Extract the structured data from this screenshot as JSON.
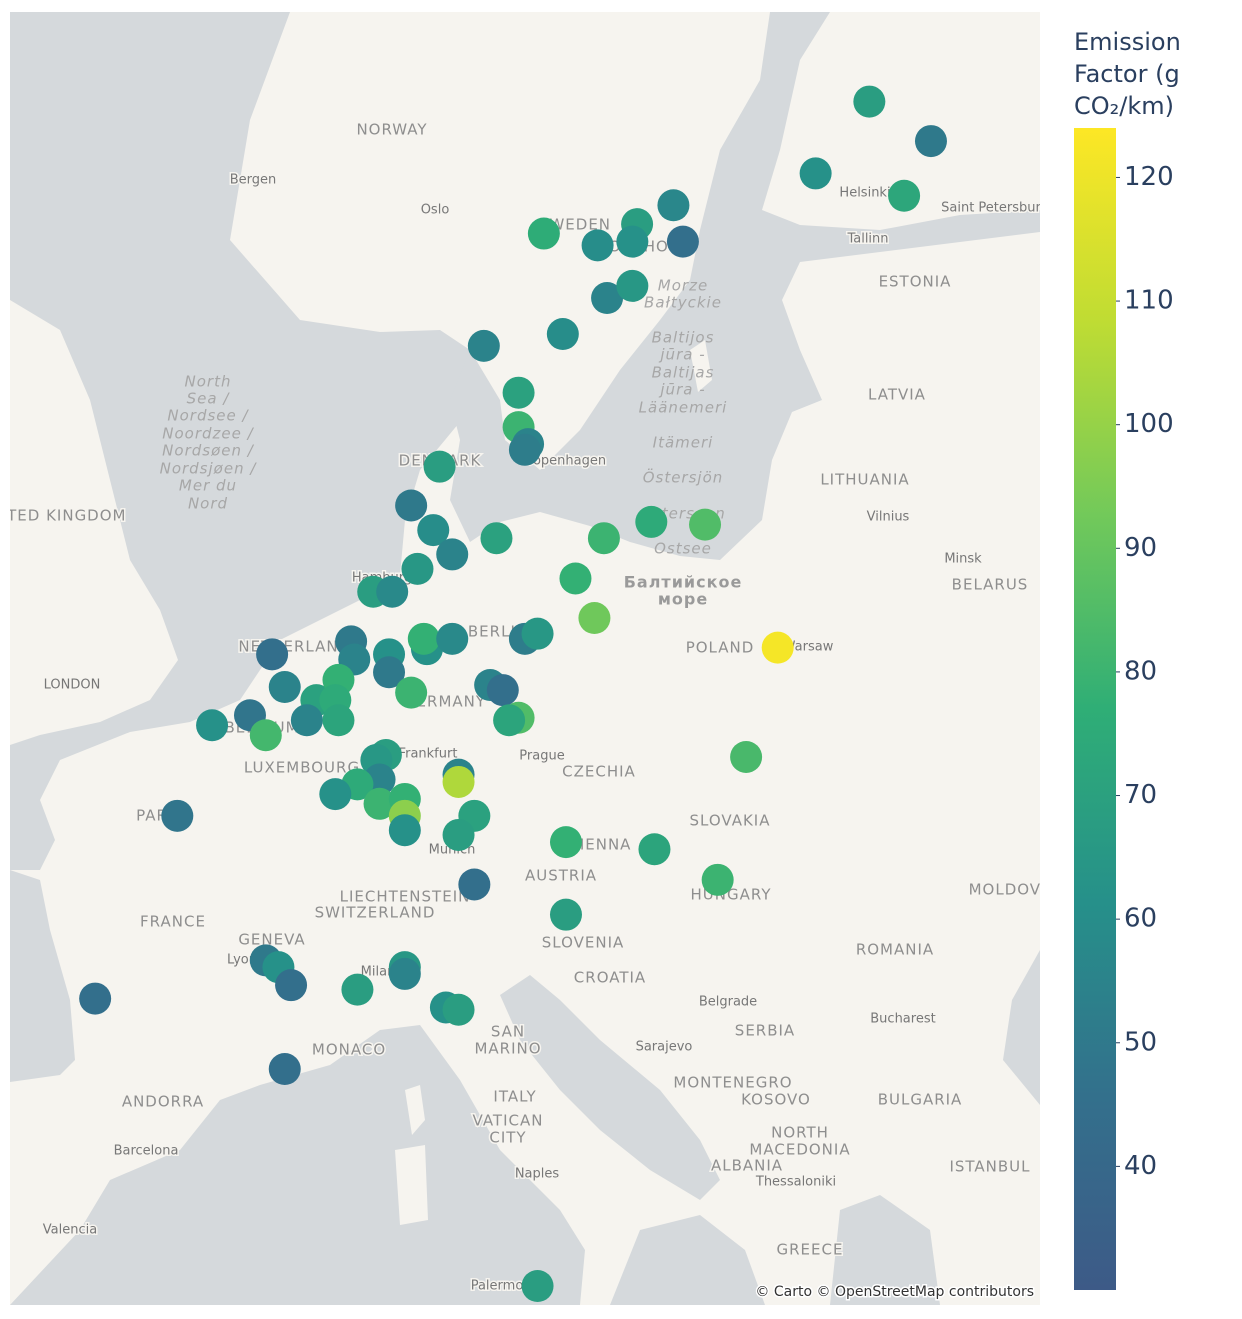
{
  "map": {
    "labels": [
      "NORWAY",
      "Bergen",
      "Oslo",
      "SWEDEN",
      "STOCKHOLM",
      "Helsinki",
      "Saint Petersburg",
      "Tallinn",
      "ESTONIA",
      "LATVIA",
      "LITHUANIA",
      "Vilnius",
      "Minsk",
      "BELARUS",
      "DENMARK",
      "Copenhagen",
      "UNITED KINGDOM",
      "LONDON",
      "Hamburg",
      "NETHERLANDS",
      "BERLIN",
      "GERMANY",
      "BELGIUM",
      "LUXEMBOURG",
      "Frankfurt",
      "Prague",
      "CZECHIA",
      "POLAND",
      "Warsaw",
      "PARIS",
      "SLOVAKIA",
      "Munich",
      "VIENNA",
      "AUSTRIA",
      "HUNGARY",
      "MOLDOVA",
      "LIECHTENSTEIN",
      "SWITZERLAND",
      "FRANCE",
      "GENEVA",
      "Lyon",
      "Milan",
      "SLOVENIA",
      "ROMANIA",
      "CROATIA",
      "Belgrade",
      "SERBIA",
      "Bucharest",
      "SAN",
      "MARINO",
      "Sarajevo",
      "MONACO",
      "MONTENEGRO",
      "KOSOVO",
      "BULGARIA",
      "ANDORRA",
      "ITALY",
      "VATICAN",
      "CITY",
      "NORTH",
      "MACEDONIA",
      "ALBANIA",
      "ISTANBUL",
      "Thessaloniki",
      "Barcelona",
      "Naples",
      "Valencia",
      "GREECE",
      "Palermo"
    ],
    "north_sea": [
      "North",
      "Sea /",
      "Nordsee /",
      "Noordzee /",
      "Nordsøen /",
      "Nordsjøen /",
      "Mer du",
      "Nord"
    ],
    "baltic_sea": [
      "Morze",
      "Bałtyckie",
      "Baltijos",
      "jūra -",
      "Baltijas",
      "jūra -",
      "Läänemeri",
      "Itämeri",
      "Östersjön",
      "Ostersøen",
      "Ostsee",
      "Балтийское",
      "море"
    ],
    "attribution": "© Carto © OpenStreetMap contributors"
  },
  "chart_data": {
    "type": "scatter_geo",
    "lon": [
      23.9,
      25.85,
      22.2,
      25.0,
      17.7,
      16.55,
      13.6,
      18.0,
      15.3,
      16.4,
      15.6,
      16.4,
      14.2,
      11.7,
      12.8,
      12.8,
      13.1,
      13.0,
      10.3,
      9.4,
      10.1,
      10.7,
      12.1,
      9.6,
      8.2,
      8.8,
      7.5,
      5.0,
      7.6,
      8.7,
      8.7,
      9.9,
      9.8,
      10.7,
      13.0,
      13.4,
      15.5,
      17.0,
      18.7,
      14.6,
      15.2,
      21.0,
      20.0,
      5.4,
      6.4,
      7.1,
      7.0,
      4.3,
      3.1,
      4.8,
      6.1,
      7.1,
      9.4,
      11.9,
      12.3,
      12.8,
      12.5,
      8.6,
      8.3,
      8.4,
      7.7,
      7.0,
      8.4,
      9.2,
      9.2,
      9.2,
      10.9,
      10.9,
      11.4,
      10.9,
      2.0,
      11.4,
      14.3,
      17.1,
      19.1,
      14.3,
      4.8,
      5.2,
      5.6,
      7.7,
      9.2,
      9.2,
      10.5,
      10.9,
      -0.6,
      5.4,
      13.4
    ],
    "lat": [
      61.6,
      61.0,
      60.5,
      60.15,
      60.0,
      59.7,
      59.55,
      59.42,
      59.36,
      59.42,
      58.5,
      58.7,
      57.9,
      57.7,
      56.9,
      56.3,
      56.0,
      55.9,
      55.6,
      54.9,
      54.45,
      54.0,
      54.3,
      53.73,
      53.3,
      53.3,
      52.35,
      52.1,
      52.0,
      52.1,
      51.75,
      52.2,
      52.4,
      52.4,
      52.4,
      52.5,
      54.3,
      54.6,
      54.55,
      53.55,
      52.8,
      52.23,
      50.06,
      51.46,
      51.2,
      51.6,
      51.2,
      50.9,
      50.7,
      50.5,
      50.8,
      50.8,
      51.35,
      51.5,
      51.4,
      50.85,
      50.8,
      50.1,
      50.0,
      49.6,
      49.5,
      49.3,
      49.1,
      49.2,
      48.85,
      48.55,
      49.7,
      49.55,
      48.85,
      48.45,
      48.85,
      47.4,
      48.3,
      48.15,
      47.5,
      46.75,
      45.75,
      45.6,
      45.2,
      45.1,
      45.6,
      45.45,
      44.7,
      44.65,
      44.9,
      43.3,
      38.1
    ],
    "values": [
      68,
      50,
      62,
      73,
      57,
      68,
      76,
      45,
      60,
      62,
      55,
      65,
      60,
      55,
      70,
      80,
      55,
      52,
      68,
      50,
      60,
      55,
      70,
      65,
      68,
      58,
      50,
      45,
      55,
      62,
      50,
      62,
      78,
      58,
      52,
      65,
      80,
      75,
      85,
      78,
      92,
      122,
      83,
      55,
      70,
      78,
      75,
      48,
      62,
      82,
      55,
      72,
      80,
      55,
      45,
      85,
      72,
      68,
      65,
      55,
      75,
      62,
      80,
      78,
      98,
      62,
      55,
      105,
      70,
      68,
      48,
      45,
      78,
      72,
      80,
      68,
      50,
      62,
      45,
      68,
      65,
      55,
      62,
      68,
      45,
      45,
      68
    ],
    "colorscale": [
      "#3d5a87",
      "#33708c",
      "#26908a",
      "#2fae76",
      "#72c95a",
      "#bfdc33",
      "#fde725"
    ],
    "colorbar": {
      "title": "Emission Factor (g CO₂/km)",
      "range": [
        30,
        124
      ],
      "ticks": [
        40,
        50,
        60,
        70,
        80,
        90,
        100,
        110,
        120
      ]
    }
  }
}
